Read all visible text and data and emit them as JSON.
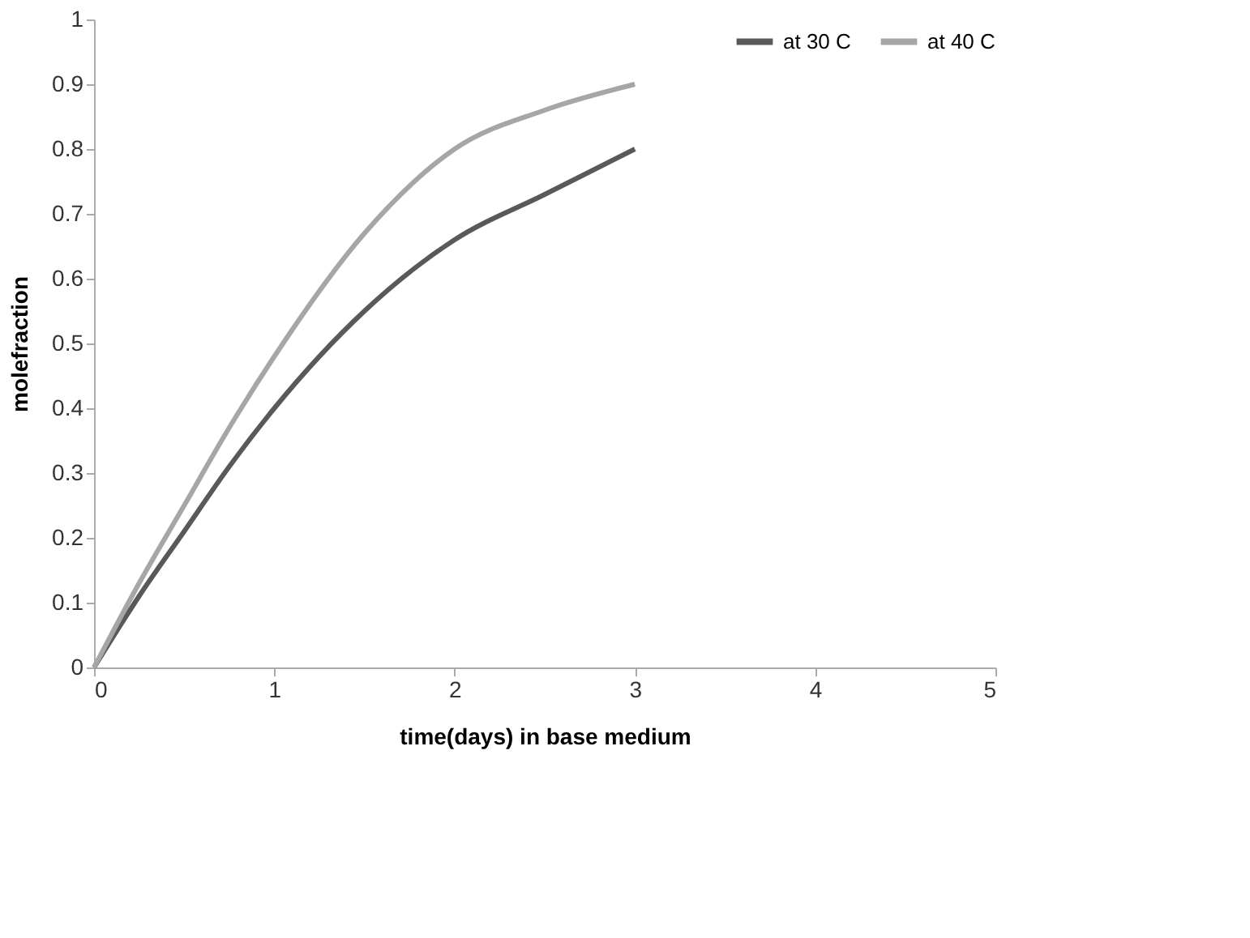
{
  "chart_data": {
    "type": "line",
    "xlabel": "time(days) in base medium",
    "ylabel": "molefraction",
    "x": [
      0,
      0.25,
      0.5,
      0.75,
      1,
      1.5,
      2,
      2.5,
      3
    ],
    "series": [
      {
        "name": "at 30 C",
        "color": "#595959",
        "values": [
          0,
          0.11,
          0.21,
          0.31,
          0.4,
          0.55,
          0.66,
          0.73,
          0.8
        ]
      },
      {
        "name": "at 40 C",
        "color": "#a6a6a6",
        "values": [
          0,
          0.13,
          0.25,
          0.37,
          0.48,
          0.67,
          0.8,
          0.86,
          0.9
        ]
      }
    ],
    "xlim": [
      0,
      5
    ],
    "xticks": [
      0,
      1,
      2,
      3,
      4,
      5
    ],
    "ylim": [
      0,
      1
    ],
    "yticks": [
      0,
      0.1,
      0.2,
      0.3,
      0.4,
      0.5,
      0.6,
      0.7,
      0.8,
      0.9,
      1
    ],
    "grid": false,
    "legend": "top right",
    "marker": "none",
    "line_style": "solid"
  }
}
